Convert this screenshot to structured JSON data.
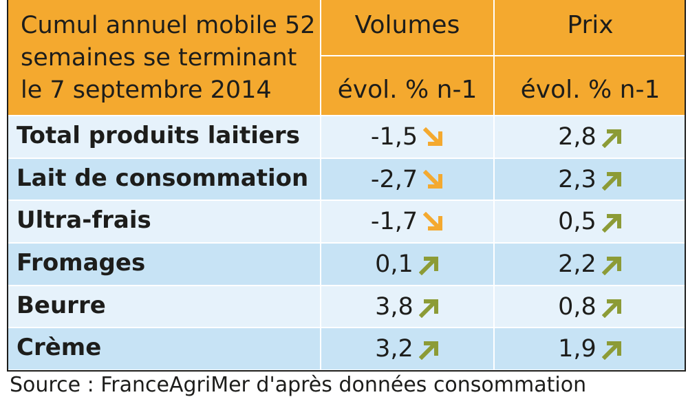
{
  "header": {
    "title_lines": [
      "Cumul annuel mobile 52",
      "semaines se terminant",
      "le 7 septembre 2014"
    ],
    "volumes_label": "Volumes",
    "prix_label": "Prix",
    "volumes_sub": "évol. % n-1",
    "prix_sub": "évol. % n-1"
  },
  "rows": [
    {
      "label": "Total produits laitiers",
      "volume": "-1,5",
      "volume_trend": "down",
      "prix": "2,8",
      "prix_trend": "up"
    },
    {
      "label": "Lait de consommation",
      "volume": "-2,7",
      "volume_trend": "down",
      "prix": "2,3",
      "prix_trend": "up"
    },
    {
      "label": "Ultra-frais",
      "volume": "-1,7",
      "volume_trend": "down",
      "prix": "0,5",
      "prix_trend": "up"
    },
    {
      "label": "Fromages",
      "volume": "0,1",
      "volume_trend": "up",
      "prix": "2,2",
      "prix_trend": "up"
    },
    {
      "label": "Beurre",
      "volume": "3,8",
      "volume_trend": "up",
      "prix": "0,8",
      "prix_trend": "up"
    },
    {
      "label": "Crème",
      "volume": "3,2",
      "volume_trend": "up",
      "prix": "1,9",
      "prix_trend": "up"
    }
  ],
  "source_text": "Source : FranceAgriMer d'après données consommation",
  "colors": {
    "header_bg": "#f4a92f",
    "row_light": "#e6f2fb",
    "row_dark": "#c7e3f5",
    "arrow_up": "#8c9b36",
    "arrow_down": "#f4a92f"
  },
  "icons": {
    "up": "arrow-up-right-icon",
    "down": "arrow-down-right-icon"
  }
}
